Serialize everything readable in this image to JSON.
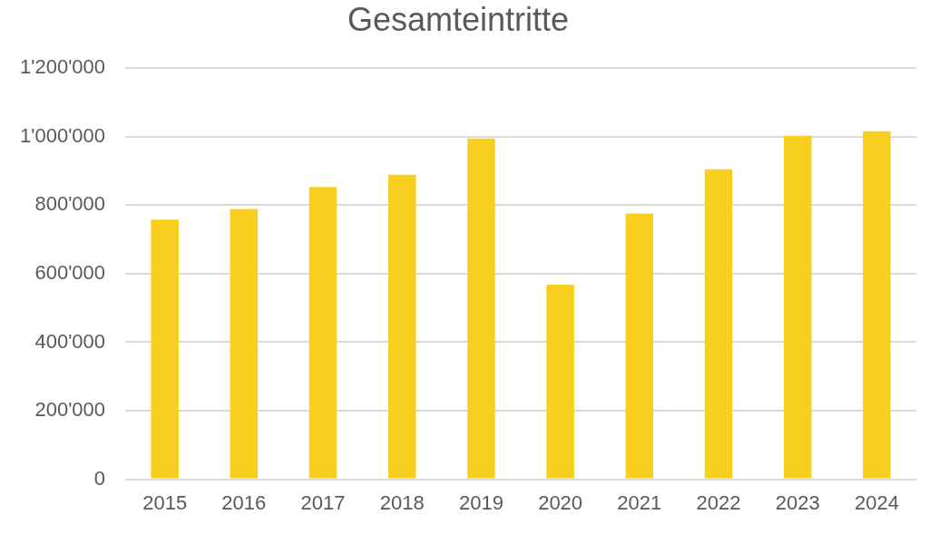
{
  "chart_data": {
    "type": "bar",
    "title": "Gesamteintritte",
    "categories": [
      "2015",
      "2016",
      "2017",
      "2018",
      "2019",
      "2020",
      "2021",
      "2022",
      "2023",
      "2024"
    ],
    "values": [
      758000,
      789000,
      853000,
      889000,
      995000,
      568000,
      776000,
      905000,
      1003000,
      1016000
    ],
    "color": "#f9cf1f",
    "ylim": [
      0,
      1200000
    ],
    "yticks": [
      {
        "value": 0,
        "label": "0"
      },
      {
        "value": 200000,
        "label": "200'000"
      },
      {
        "value": 400000,
        "label": "400'000"
      },
      {
        "value": 600000,
        "label": "600'000"
      },
      {
        "value": 800000,
        "label": "800'000"
      },
      {
        "value": 1000000,
        "label": "1'000'000"
      },
      {
        "value": 1200000,
        "label": "1'200'000"
      }
    ],
    "grid": "y",
    "legend": false
  }
}
